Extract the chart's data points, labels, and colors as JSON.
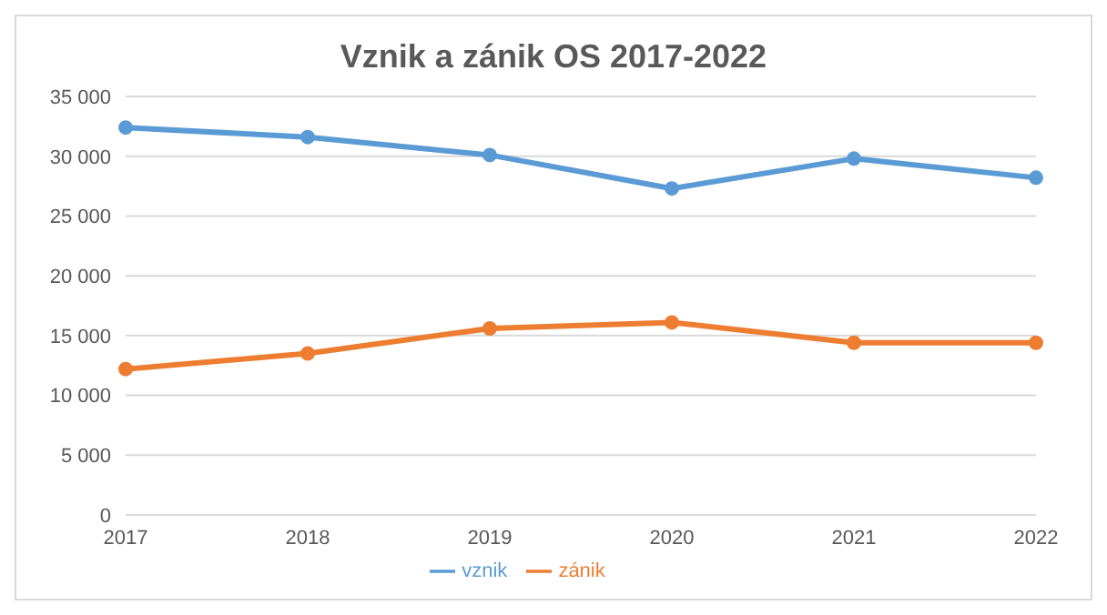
{
  "chart_data": {
    "type": "line",
    "title": "Vznik a zánik OS 2017-2022",
    "categories": [
      "2017",
      "2018",
      "2019",
      "2020",
      "2021",
      "2022"
    ],
    "series": [
      {
        "name": "vznik",
        "color": "#5b9bd5",
        "values": [
          32400,
          31600,
          30100,
          27300,
          29800,
          28200
        ]
      },
      {
        "name": "zánik",
        "color": "#ed7d31",
        "values": [
          12200,
          13500,
          15600,
          16100,
          14400,
          14400
        ]
      }
    ],
    "ylim": [
      0,
      35000
    ],
    "yticks": [
      {
        "value": 0,
        "label": "0"
      },
      {
        "value": 5000,
        "label": "5 000"
      },
      {
        "value": 10000,
        "label": "10 000"
      },
      {
        "value": 15000,
        "label": "15 000"
      },
      {
        "value": 20000,
        "label": "20 000"
      },
      {
        "value": 25000,
        "label": "25 000"
      },
      {
        "value": 30000,
        "label": "30 000"
      },
      {
        "value": 35000,
        "label": "35 000"
      }
    ],
    "grid": "y",
    "legend": "bottom",
    "marker": "circle",
    "line_style": "solid"
  }
}
